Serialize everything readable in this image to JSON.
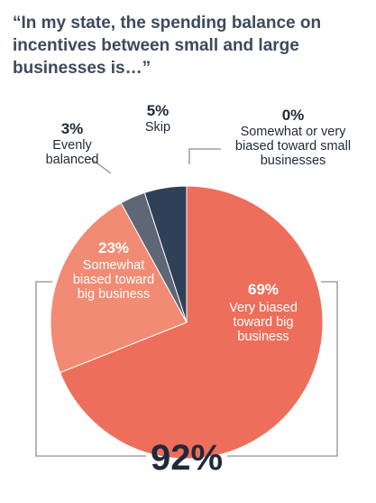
{
  "chart_data": {
    "type": "pie",
    "title": "“In my state, the spending balance on incentives between small and large businesses is…”",
    "title_lines": [
      "“In my state, the spending balance on",
      "incentives between small and large",
      "businesses is…”"
    ],
    "slices": [
      {
        "pct_label": "69%",
        "value": 69,
        "label_lines": [
          "Very biased",
          "toward big",
          "business"
        ],
        "color": "#ee6e5c"
      },
      {
        "pct_label": "23%",
        "value": 23,
        "label_lines": [
          "Somewhat",
          "biased toward",
          "big business"
        ],
        "color": "#f28b73"
      },
      {
        "pct_label": "3%",
        "value": 3,
        "label_lines": [
          "Evenly",
          "balanced"
        ],
        "color": "#5f6675"
      },
      {
        "pct_label": "5%",
        "value": 5,
        "label_lines": [
          "Skip"
        ],
        "color": "#2f4158"
      },
      {
        "pct_label": "0%",
        "value": 0,
        "label_lines": [
          "Somewhat or very",
          "biased toward small",
          "businesses"
        ],
        "color": "#2f4158"
      }
    ],
    "total_label": "92%"
  }
}
